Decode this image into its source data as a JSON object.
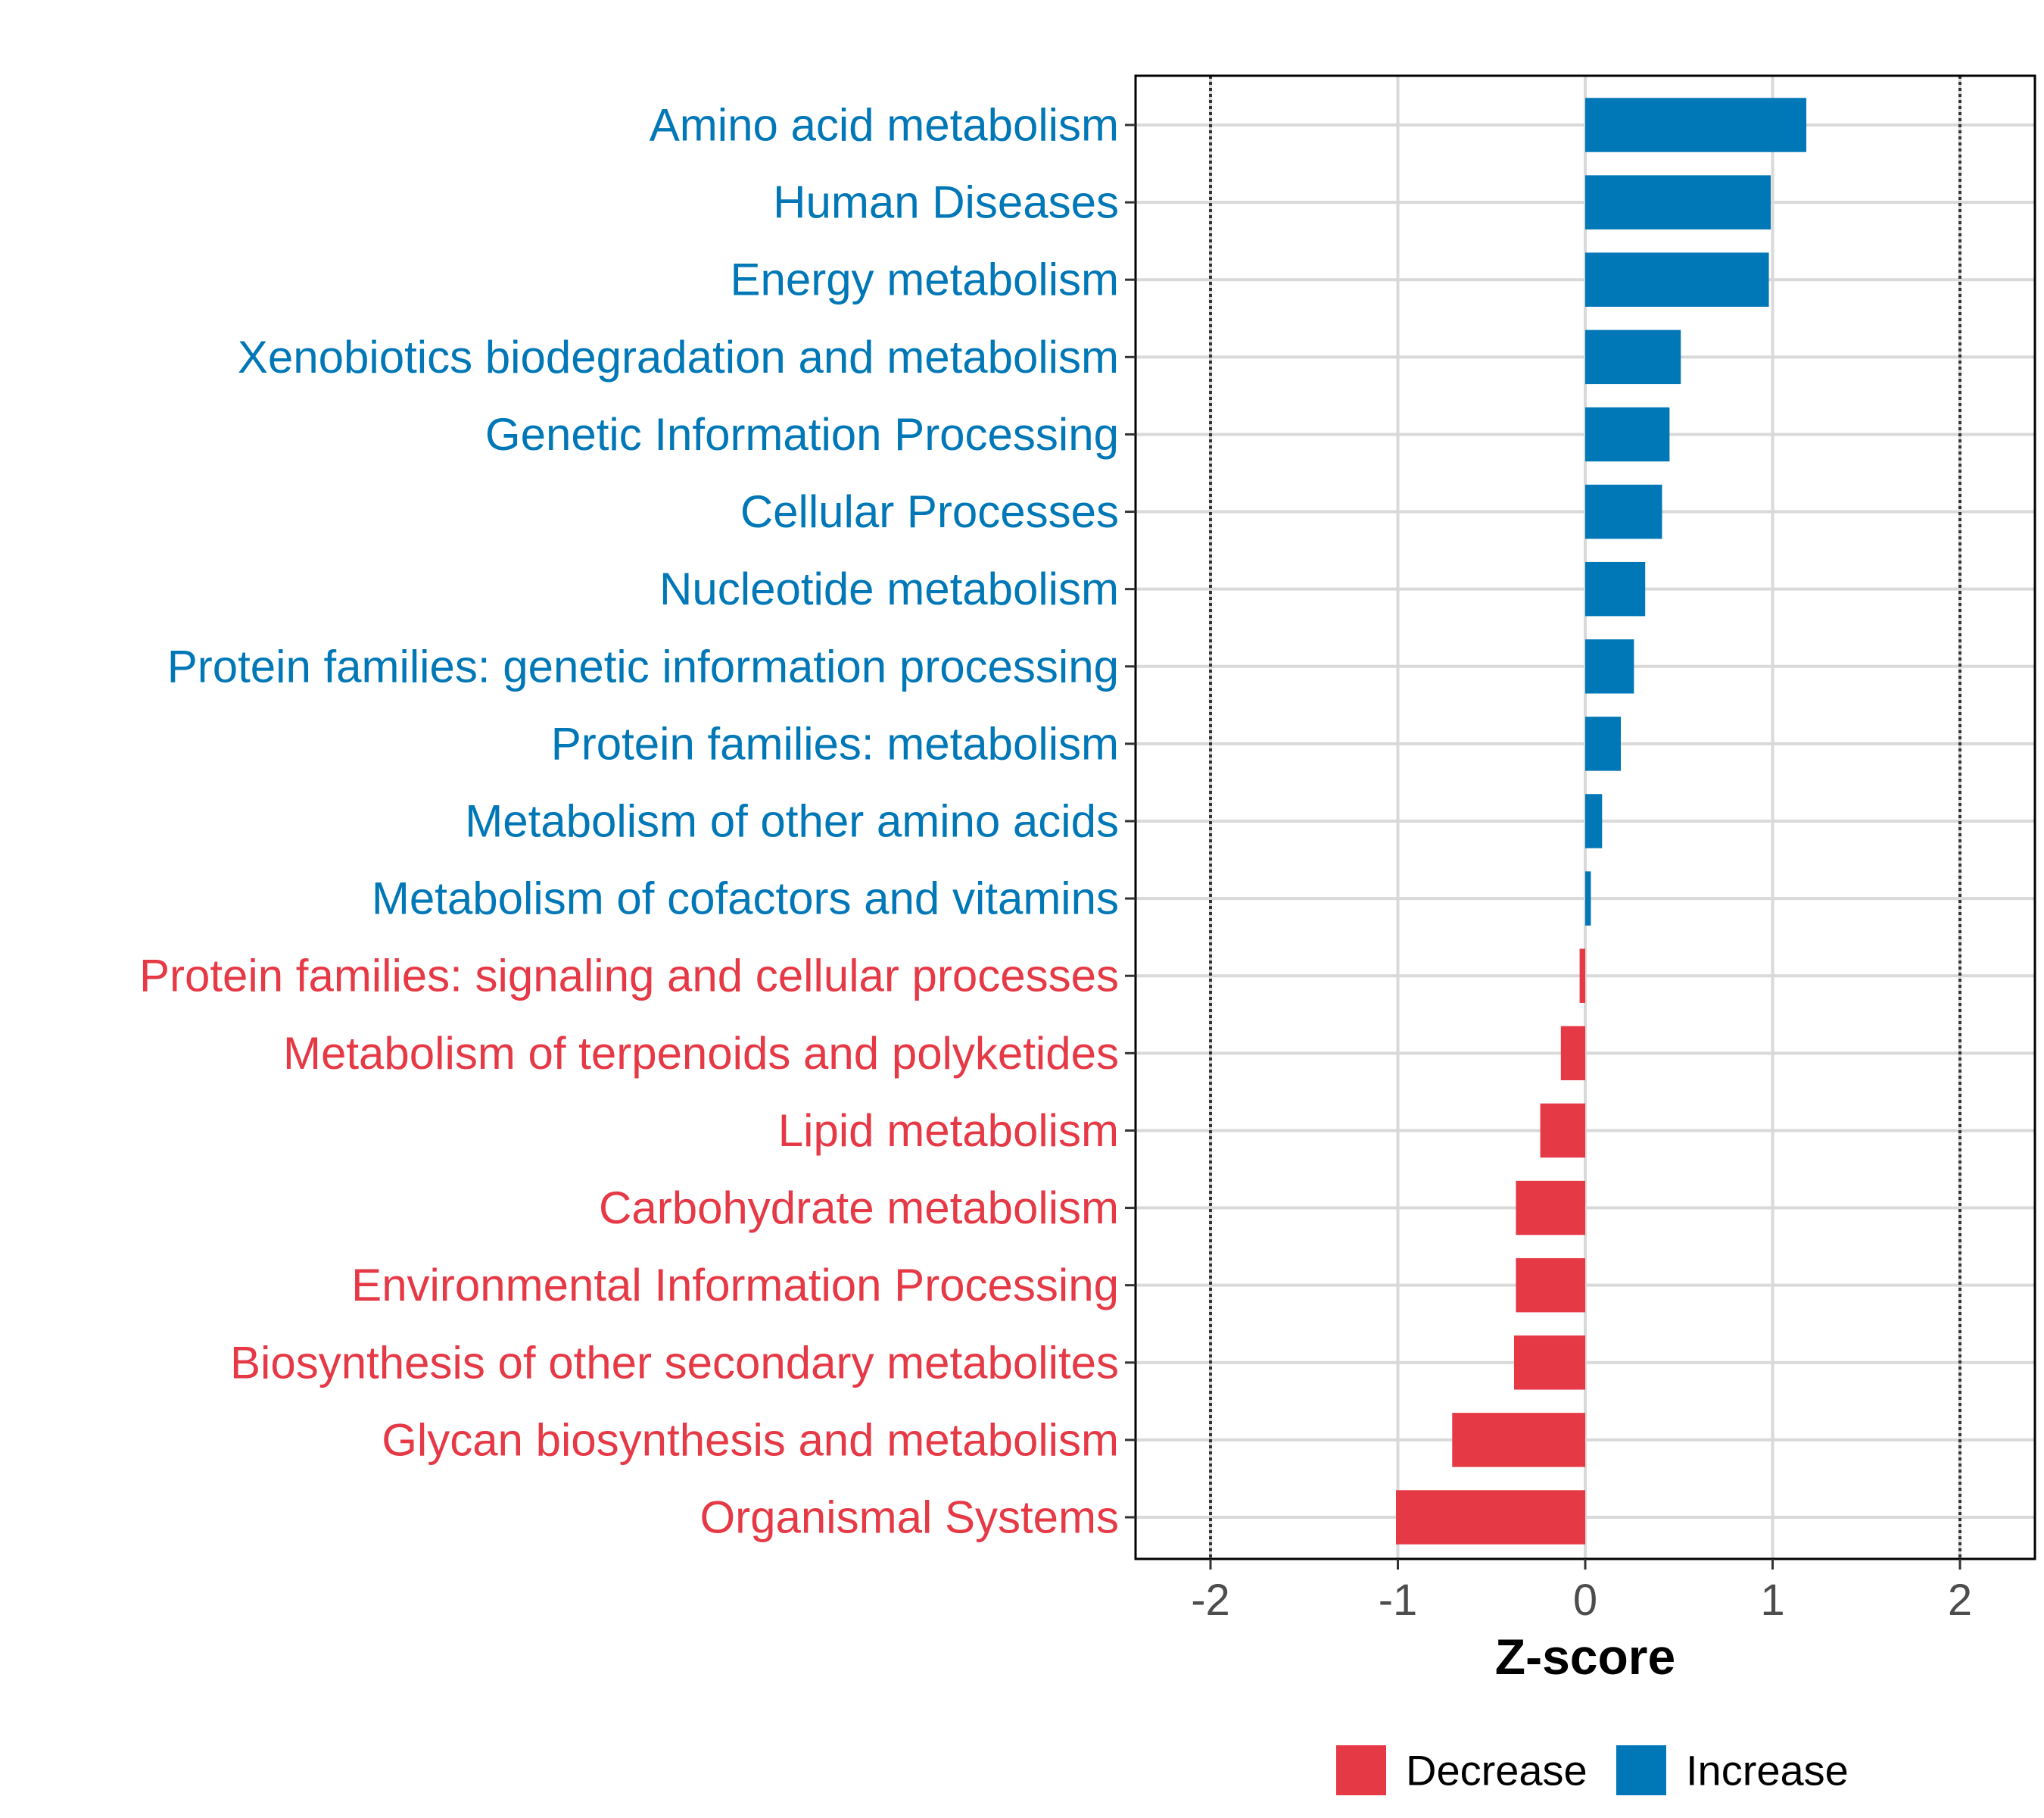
{
  "chart_data": {
    "type": "bar",
    "orientation": "horizontal",
    "title": "",
    "xlabel": "Z-score",
    "ylabel": "",
    "xlim": [
      -2.4,
      2.4
    ],
    "xticks": [
      -2,
      -1,
      0,
      1,
      2
    ],
    "xtick_labels": [
      "-2",
      "-1",
      "0",
      "1",
      "2"
    ],
    "reference_lines": [
      -2,
      2
    ],
    "grid": true,
    "legend_position": "bottom",
    "categories": [
      "Amino acid metabolism",
      "Human Diseases",
      "Energy metabolism",
      "Xenobiotics biodegradation and metabolism",
      "Genetic Information Processing",
      "Cellular Processes",
      "Nucleotide metabolism",
      "Protein families: genetic information processing",
      "Protein families: metabolism",
      "Metabolism of other amino acids",
      "Metabolism of cofactors and vitamins",
      "Protein families: signaling and cellular processes",
      "Metabolism of terpenoids and polyketides",
      "Lipid metabolism",
      "Carbohydrate metabolism",
      "Environmental Information Processing",
      "Biosynthesis of other secondary metabolites",
      "Glycan biosynthesis and metabolism",
      "Organismal Systems"
    ],
    "values": [
      1.18,
      0.99,
      0.98,
      0.51,
      0.45,
      0.41,
      0.32,
      0.26,
      0.19,
      0.09,
      0.03,
      -0.03,
      -0.13,
      -0.24,
      -0.37,
      -0.37,
      -0.38,
      -0.71,
      -1.01
    ],
    "groups": [
      "Increase",
      "Increase",
      "Increase",
      "Increase",
      "Increase",
      "Increase",
      "Increase",
      "Increase",
      "Increase",
      "Increase",
      "Increase",
      "Decrease",
      "Decrease",
      "Decrease",
      "Decrease",
      "Decrease",
      "Decrease",
      "Decrease",
      "Decrease"
    ],
    "legend": [
      {
        "name": "Decrease",
        "color": "#e63946"
      },
      {
        "name": "Increase",
        "color": "#0077b6"
      }
    ]
  }
}
